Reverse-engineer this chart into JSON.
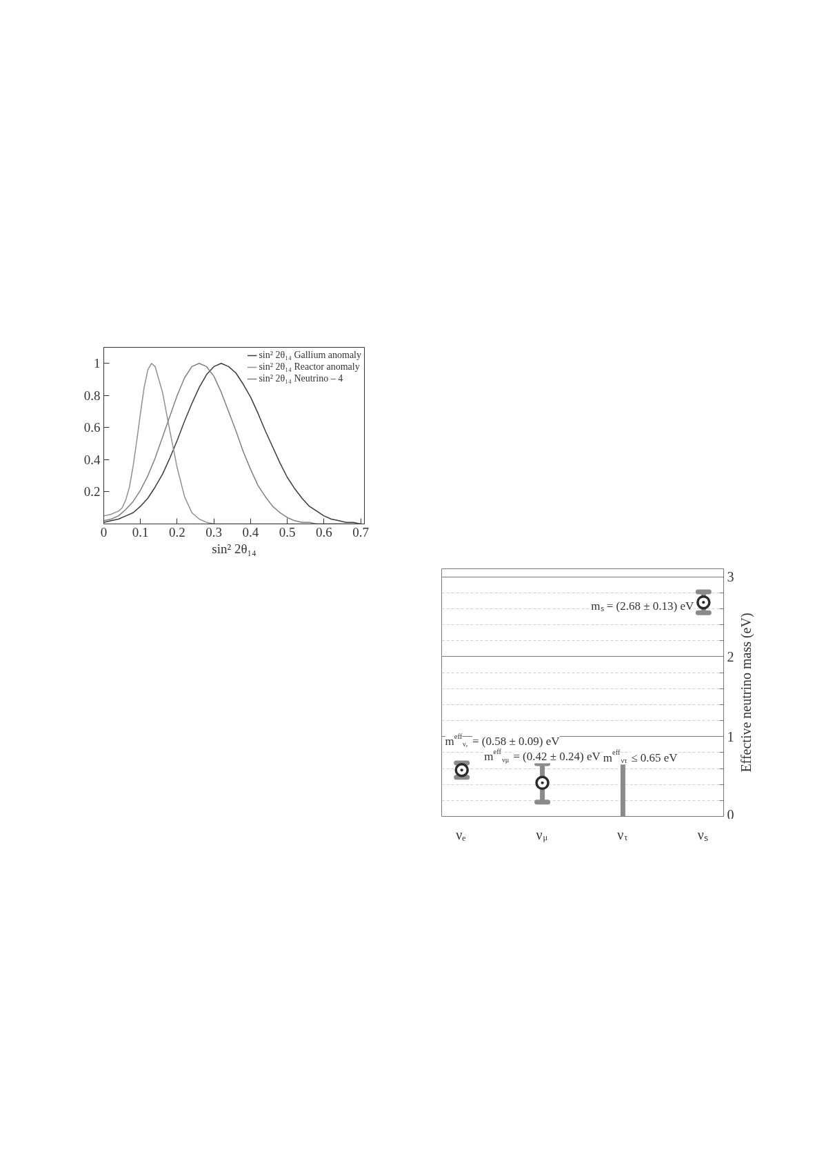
{
  "chart_data": [
    {
      "type": "line",
      "xlabel": "sin² 2θ₁₄",
      "xlim": [
        0,
        0.71
      ],
      "xticks": [
        0,
        0.1,
        0.2,
        0.3,
        0.4,
        0.5,
        0.6,
        0.7
      ],
      "ylim": [
        0,
        1.1
      ],
      "yticks": [
        0.2,
        0.4,
        0.6,
        0.8,
        1
      ],
      "grid": false,
      "legend": "top right",
      "series": [
        {
          "name": "sin² 2θ₁₄ Gallium anomaly",
          "color": "#3a3a3a",
          "x": [
            0,
            0.02,
            0.04,
            0.06,
            0.08,
            0.1,
            0.12,
            0.14,
            0.16,
            0.18,
            0.2,
            0.22,
            0.24,
            0.26,
            0.28,
            0.3,
            0.32,
            0.34,
            0.36,
            0.38,
            0.4,
            0.42,
            0.44,
            0.46,
            0.48,
            0.5,
            0.52,
            0.54,
            0.56,
            0.58,
            0.6,
            0.62,
            0.64,
            0.66,
            0.68,
            0.7
          ],
          "values": [
            0.01,
            0.02,
            0.03,
            0.05,
            0.07,
            0.11,
            0.16,
            0.23,
            0.31,
            0.41,
            0.52,
            0.64,
            0.75,
            0.85,
            0.93,
            0.98,
            1,
            0.98,
            0.94,
            0.87,
            0.79,
            0.69,
            0.58,
            0.48,
            0.38,
            0.29,
            0.22,
            0.16,
            0.11,
            0.08,
            0.05,
            0.03,
            0.02,
            0.01,
            0.01,
            0
          ]
        },
        {
          "name": "sin² 2θ₁₄ Reactor anomaly",
          "color": "#8f8f8f",
          "x": [
            0,
            0.02,
            0.04,
            0.05,
            0.06,
            0.07,
            0.08,
            0.09,
            0.1,
            0.11,
            0.12,
            0.13,
            0.14,
            0.16,
            0.18,
            0.2,
            0.22,
            0.24,
            0.26,
            0.28,
            0.3,
            0.32,
            0.36,
            0.4,
            0.5,
            0.6,
            0.7
          ],
          "values": [
            0.05,
            0.06,
            0.08,
            0.1,
            0.15,
            0.23,
            0.36,
            0.52,
            0.69,
            0.85,
            0.96,
            1,
            0.98,
            0.82,
            0.58,
            0.35,
            0.17,
            0.07,
            0.03,
            0.01,
            0,
            0,
            0,
            0,
            0,
            0,
            0
          ]
        },
        {
          "name": "sin² 2θ₁₄ Neutrino – 4",
          "color": "#7f7f7f",
          "x": [
            0,
            0.02,
            0.04,
            0.06,
            0.08,
            0.1,
            0.12,
            0.14,
            0.16,
            0.18,
            0.2,
            0.22,
            0.24,
            0.26,
            0.28,
            0.3,
            0.32,
            0.34,
            0.36,
            0.38,
            0.4,
            0.42,
            0.44,
            0.46,
            0.48,
            0.5,
            0.52,
            0.54,
            0.56,
            0.58,
            0.6,
            0.62,
            0.64,
            0.66,
            0.68,
            0.7
          ],
          "values": [
            0.02,
            0.03,
            0.05,
            0.09,
            0.14,
            0.21,
            0.3,
            0.41,
            0.54,
            0.67,
            0.8,
            0.91,
            0.98,
            1,
            0.98,
            0.92,
            0.82,
            0.7,
            0.58,
            0.45,
            0.34,
            0.24,
            0.17,
            0.11,
            0.07,
            0.04,
            0.02,
            0.01,
            0.01,
            0,
            0,
            0,
            0,
            0,
            0,
            0
          ]
        }
      ]
    },
    {
      "type": "scatter",
      "categories": [
        "νₑ",
        "ν$_{μ}$",
        "ν$_{τ}$",
        "νₛ"
      ],
      "ylabel": "Effective neutrino mass (eV)",
      "ylim": [
        0,
        3.1
      ],
      "yticks": [
        0,
        {
          "value": 0.2,
          "label": null
        },
        {
          "value": 0.4,
          "label": null
        },
        {
          "value": 0.6,
          "label": null
        },
        {
          "value": 0.8,
          "label": null
        },
        1,
        {
          "value": 1.2,
          "label": null
        },
        {
          "value": 1.4,
          "label": null
        },
        {
          "value": 1.6,
          "label": null
        },
        {
          "value": 1.8,
          "label": null
        },
        2,
        {
          "value": 2.2,
          "label": null
        },
        {
          "value": 2.4,
          "label": null
        },
        {
          "value": 2.6,
          "label": null
        },
        {
          "value": 2.8,
          "label": null
        },
        3
      ],
      "grid": "y",
      "marker": "circle",
      "series": [
        {
          "type": "scatter",
          "color": "#2b2b2b",
          "values": [
            0.58,
            0.42,
            null,
            2.68
          ],
          "errors": [
            0.09,
            0.24,
            null,
            0.13
          ]
        },
        {
          "type": "bar",
          "color": "#8c8c8c",
          "values": [
            null,
            null,
            0.65,
            null
          ]
        }
      ],
      "annotations": [
        {
          "text": "mₛ = (2.68 ± 0.13) eV",
          "x": "νₛ",
          "y": 2.68
        },
        {
          "text": "m$^{eff}$$_{ντ}$ ≤ 0.65 eV",
          "x": "ν$_{τ}$",
          "y": 0.65
        },
        {
          "text": "m$^{eff}$$_{νμ}$ = (0.42 ± 0.24) eV",
          "x": "ν$_{μ}$",
          "y": 0.42
        },
        {
          "text": "m$^{eff}$$_{νₑ}$ = (0.58 ± 0.09) eV",
          "x": "νₑ",
          "y": 0.58
        }
      ]
    }
  ]
}
